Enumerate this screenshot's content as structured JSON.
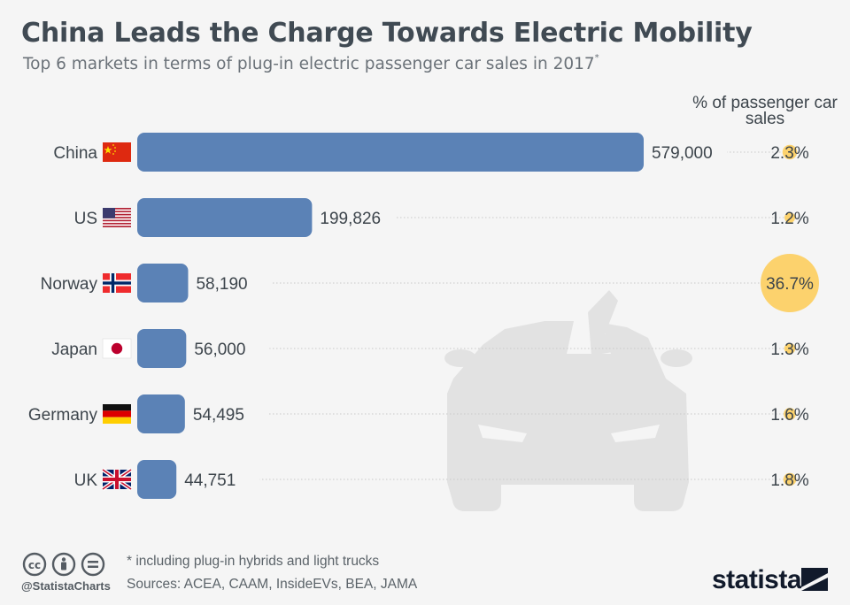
{
  "title": "China Leads the Charge Towards Electric Mobility",
  "subtitle": "Top 6 markets in terms of plug-in electric passenger car sales in 2017",
  "subtitle_mark": "*",
  "share_header": "% of passenger car sales",
  "footnote": "* including plug-in hybrids and light trucks",
  "sources": "Sources: ACEA, CAAM, InsideEVs, BEA, JAMA",
  "handle": "@StatistaCharts",
  "brand": "statista",
  "colors": {
    "bar": "#5b82b6",
    "bubble": "#fcd26d",
    "text": "#3d454c",
    "car_watermark": "#e2e2e2"
  },
  "chart_data": {
    "type": "bar",
    "orientation": "horizontal",
    "categories": [
      "China",
      "US",
      "Norway",
      "Japan",
      "Germany",
      "UK"
    ],
    "flags": [
      "flag-china-icon",
      "flag-us-icon",
      "flag-norway-icon",
      "flag-japan-icon",
      "flag-germany-icon",
      "flag-uk-icon"
    ],
    "series": [
      {
        "values": [
          579000,
          199826,
          58190,
          56000,
          54495,
          44751
        ],
        "labels": [
          "579,000",
          "199,826",
          "58,190",
          "56,000",
          "54,495",
          "44,751"
        ]
      }
    ],
    "share_of_sales": {
      "values": [
        2.3,
        1.2,
        36.7,
        1.3,
        1.6,
        1.8
      ],
      "labels": [
        "2.3%",
        "1.2%",
        "36.7%",
        "1.3%",
        "1.6%",
        "1.8%"
      ]
    }
  }
}
